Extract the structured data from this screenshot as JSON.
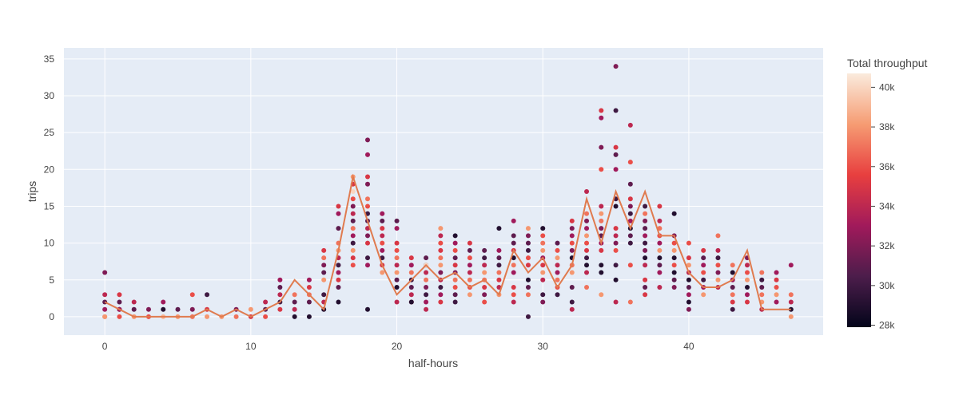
{
  "chart_data": {
    "type": "scatter",
    "xlabel": "half-hours",
    "ylabel": "trips",
    "xlim": [
      -2.8,
      49.2
    ],
    "ylim": [
      -2.5,
      36.5
    ],
    "x_ticks": [
      0,
      10,
      20,
      30,
      40
    ],
    "y_ticks": [
      0,
      5,
      10,
      15,
      20,
      25,
      30,
      35
    ],
    "plot_background": "#e5ecf6",
    "grid": true,
    "colorbar": {
      "title": "Total throughput",
      "range": [
        27900,
        40700
      ],
      "tick_values": [
        28000,
        30000,
        32000,
        34000,
        36000,
        38000,
        40000
      ],
      "tick_labels": [
        "28k",
        "30k",
        "32k",
        "34k",
        "36k",
        "38k",
        "40k"
      ],
      "colorscale": [
        "#03051a",
        "#4c1d4b",
        "#a11a5b",
        "#e83f3f",
        "#f69c73",
        "#faebdd"
      ]
    },
    "line_series": {
      "color": "#e07b4f",
      "x": [
        0,
        1,
        2,
        3,
        4,
        5,
        6,
        7,
        8,
        9,
        10,
        11,
        12,
        13,
        14,
        15,
        16,
        17,
        18,
        19,
        20,
        21,
        22,
        23,
        24,
        25,
        26,
        27,
        28,
        29,
        30,
        31,
        32,
        33,
        34,
        35,
        36,
        37,
        38,
        39,
        40,
        41,
        42,
        43,
        44,
        45,
        46,
        47
      ],
      "y": [
        2,
        1,
        0,
        0,
        0,
        0,
        0,
        1,
        0,
        1,
        0,
        1,
        2,
        5,
        3,
        1,
        9,
        19,
        13,
        7,
        3,
        5,
        7,
        5,
        6,
        4,
        5,
        3,
        9,
        6,
        8,
        4,
        7,
        16,
        10,
        17,
        12,
        17,
        11,
        11,
        6,
        4,
        4,
        5,
        9,
        1,
        1,
        1
      ]
    },
    "points": {
      "x": [
        0,
        0,
        0,
        0,
        0,
        0,
        1,
        1,
        1,
        1,
        1,
        2,
        2,
        2,
        3,
        3,
        4,
        4,
        4,
        5,
        5,
        6,
        6,
        6,
        7,
        7,
        7,
        8,
        9,
        9,
        10,
        10,
        11,
        11,
        11,
        12,
        12,
        12,
        12,
        12,
        13,
        13,
        13,
        13,
        14,
        14,
        14,
        14,
        14,
        15,
        15,
        15,
        15,
        15,
        15,
        15,
        15,
        16,
        16,
        16,
        16,
        16,
        16,
        16,
        16,
        16,
        16,
        16,
        17,
        17,
        17,
        17,
        17,
        17,
        17,
        17,
        17,
        17,
        17,
        17,
        17,
        18,
        18,
        18,
        18,
        18,
        18,
        18,
        18,
        18,
        18,
        18,
        18,
        18,
        18,
        19,
        19,
        19,
        19,
        19,
        19,
        19,
        19,
        19,
        20,
        20,
        20,
        20,
        20,
        20,
        20,
        20,
        20,
        20,
        21,
        21,
        21,
        21,
        21,
        21,
        21,
        21,
        22,
        22,
        22,
        22,
        22,
        22,
        22,
        22,
        22,
        23,
        23,
        23,
        23,
        23,
        23,
        23,
        23,
        23,
        23,
        23,
        24,
        24,
        24,
        24,
        24,
        24,
        24,
        24,
        24,
        24,
        25,
        25,
        25,
        25,
        25,
        25,
        25,
        25,
        26,
        26,
        26,
        26,
        26,
        26,
        26,
        26,
        27,
        27,
        27,
        27,
        27,
        27,
        27,
        27,
        28,
        28,
        28,
        28,
        28,
        28,
        28,
        28,
        28,
        28,
        29,
        29,
        29,
        29,
        29,
        29,
        29,
        29,
        29,
        29,
        30,
        30,
        30,
        30,
        30,
        30,
        30,
        30,
        30,
        30,
        31,
        31,
        31,
        31,
        31,
        31,
        31,
        31,
        32,
        32,
        32,
        32,
        32,
        32,
        32,
        32,
        32,
        32,
        32,
        33,
        33,
        33,
        33,
        33,
        33,
        33,
        33,
        33,
        33,
        33,
        34,
        34,
        34,
        34,
        34,
        34,
        34,
        34,
        34,
        34,
        34,
        34,
        34,
        34,
        35,
        35,
        35,
        35,
        35,
        35,
        35,
        35,
        35,
        35,
        35,
        35,
        35,
        35,
        36,
        36,
        36,
        36,
        36,
        36,
        36,
        36,
        36,
        36,
        36,
        36,
        37,
        37,
        37,
        37,
        37,
        37,
        37,
        37,
        37,
        37,
        37,
        37,
        38,
        38,
        38,
        38,
        38,
        38,
        38,
        38,
        38,
        38,
        39,
        39,
        39,
        39,
        39,
        39,
        39,
        39,
        39,
        40,
        40,
        40,
        40,
        40,
        40,
        40,
        40,
        40,
        41,
        41,
        41,
        41,
        41,
        41,
        41,
        42,
        42,
        42,
        42,
        42,
        42,
        42,
        43,
        43,
        43,
        43,
        43,
        43,
        43,
        44,
        44,
        44,
        44,
        44,
        44,
        44,
        45,
        45,
        45,
        45,
        45,
        45,
        46,
        46,
        46,
        46,
        46,
        47,
        47,
        47,
        47,
        47
      ],
      "y": [
        6,
        3,
        2,
        1,
        0,
        0,
        3,
        2,
        1,
        1,
        0,
        2,
        1,
        0,
        1,
        0,
        2,
        1,
        0,
        1,
        0,
        3,
        1,
        0,
        3,
        1,
        0,
        0,
        1,
        0,
        1,
        0,
        2,
        1,
        0,
        5,
        4,
        3,
        2,
        1,
        3,
        2,
        1,
        0,
        5,
        4,
        3,
        2,
        0,
        9,
        8,
        7,
        6,
        5,
        3,
        2,
        1,
        15,
        14,
        12,
        10,
        9,
        8,
        7,
        6,
        5,
        4,
        2,
        19,
        18,
        17,
        16,
        15,
        14,
        13,
        12,
        11,
        10,
        9,
        8,
        7,
        24,
        22,
        19,
        18,
        16,
        15,
        14,
        13,
        12,
        11,
        10,
        8,
        7,
        1,
        14,
        13,
        12,
        11,
        10,
        9,
        8,
        7,
        6,
        13,
        12,
        10,
        9,
        8,
        7,
        6,
        5,
        4,
        2,
        8,
        7,
        6,
        5,
        4,
        3,
        2,
        2,
        7,
        6,
        5,
        4,
        3,
        2,
        1,
        8,
        7,
        12,
        11,
        10,
        9,
        8,
        7,
        6,
        5,
        4,
        3,
        2,
        11,
        10,
        9,
        8,
        7,
        6,
        5,
        4,
        3,
        2,
        10,
        9,
        8,
        7,
        6,
        5,
        4,
        3,
        9,
        8,
        7,
        6,
        5,
        4,
        3,
        2,
        12,
        9,
        8,
        7,
        6,
        5,
        4,
        3,
        13,
        11,
        10,
        9,
        8,
        7,
        6,
        4,
        3,
        2,
        12,
        11,
        10,
        9,
        8,
        7,
        5,
        4,
        3,
        0,
        12,
        11,
        10,
        9,
        8,
        7,
        6,
        5,
        3,
        2,
        10,
        9,
        8,
        7,
        6,
        5,
        4,
        3,
        13,
        12,
        11,
        10,
        9,
        8,
        7,
        6,
        4,
        2,
        1,
        17,
        14,
        13,
        12,
        11,
        10,
        9,
        8,
        7,
        6,
        4,
        28,
        27,
        23,
        20,
        15,
        14,
        13,
        12,
        11,
        10,
        9,
        7,
        6,
        3,
        34,
        28,
        23,
        22,
        20,
        16,
        15,
        12,
        11,
        10,
        9,
        7,
        5,
        2,
        26,
        21,
        18,
        16,
        15,
        14,
        13,
        12,
        11,
        10,
        7,
        2,
        15,
        14,
        13,
        12,
        11,
        10,
        9,
        8,
        7,
        5,
        4,
        3,
        15,
        13,
        12,
        11,
        10,
        9,
        8,
        7,
        6,
        4,
        14,
        11,
        10,
        9,
        8,
        7,
        6,
        5,
        4,
        10,
        8,
        7,
        6,
        5,
        4,
        3,
        2,
        1,
        9,
        8,
        7,
        6,
        5,
        4,
        3,
        11,
        9,
        8,
        7,
        6,
        5,
        4,
        7,
        6,
        5,
        4,
        3,
        2,
        1,
        8,
        7,
        6,
        5,
        4,
        3,
        2,
        6,
        5,
        4,
        3,
        2,
        1,
        6,
        5,
        4,
        3,
        2,
        7,
        3,
        2,
        1,
        0
      ],
      "throughput": [
        32000,
        34000,
        31000,
        33000,
        37000,
        38000,
        35000,
        31000,
        29000,
        33000,
        36000,
        34000,
        31000,
        38000,
        32000,
        36000,
        33000,
        29000,
        39000,
        31000,
        38000,
        36000,
        32000,
        37000,
        30000,
        35000,
        38000,
        38000,
        32000,
        37000,
        38000,
        35000,
        34000,
        31000,
        36000,
        33000,
        31000,
        34000,
        30000,
        35000,
        37000,
        31000,
        34000,
        29000,
        33000,
        35000,
        37000,
        31000,
        29000,
        35000,
        37000,
        32000,
        31000,
        38000,
        30000,
        34000,
        29000,
        35000,
        33000,
        31000,
        37000,
        38000,
        34000,
        30000,
        33000,
        35000,
        31000,
        29000,
        38000,
        35000,
        40000,
        36000,
        32000,
        34000,
        31000,
        37000,
        33000,
        30000,
        38000,
        35000,
        36000,
        32000,
        33000,
        35000,
        32000,
        37000,
        36000,
        30000,
        31000,
        34000,
        32000,
        35000,
        30000,
        33000,
        29000,
        33000,
        31000,
        35000,
        34000,
        36000,
        33000,
        30000,
        35000,
        38000,
        31000,
        33000,
        35000,
        36000,
        37000,
        34000,
        38000,
        31000,
        29000,
        34000,
        35000,
        33000,
        37000,
        30000,
        31000,
        34000,
        35000,
        29000,
        29000,
        34000,
        37000,
        32000,
        30000,
        33000,
        34000,
        31000,
        40000,
        38000,
        34000,
        36000,
        35000,
        37000,
        38000,
        32000,
        34000,
        30000,
        33000,
        35000,
        29000,
        33000,
        36000,
        31000,
        35000,
        32000,
        37000,
        36000,
        31000,
        30000,
        35000,
        31000,
        36000,
        33000,
        34000,
        37000,
        36000,
        38000,
        31000,
        30000,
        34000,
        38000,
        37000,
        35000,
        32000,
        36000,
        29000,
        33000,
        31000,
        30000,
        37000,
        35000,
        34000,
        38000,
        33000,
        31000,
        31000,
        35000,
        29000,
        37000,
        33000,
        35000,
        36000,
        34000,
        38000,
        32000,
        31000,
        30000,
        36000,
        35000,
        29000,
        31000,
        37000,
        30000,
        29000,
        36000,
        37000,
        38000,
        33000,
        35000,
        38000,
        34000,
        30000,
        32000,
        31000,
        36000,
        38000,
        34000,
        33000,
        37000,
        36000,
        30000,
        35000,
        32000,
        33000,
        36000,
        32000,
        29000,
        37000,
        38000,
        31000,
        30000,
        34000,
        34000,
        37000,
        32000,
        33000,
        38000,
        36000,
        35000,
        30000,
        29000,
        34000,
        37000,
        35000,
        33000,
        32000,
        36000,
        34000,
        38000,
        37000,
        32000,
        31000,
        33000,
        35000,
        29000,
        29000,
        38000,
        32000,
        30000,
        35000,
        31000,
        33000,
        30000,
        29000,
        35000,
        34000,
        32000,
        36000,
        30000,
        29000,
        34000,
        34000,
        36000,
        31000,
        35000,
        32000,
        30000,
        33000,
        29000,
        31000,
        30000,
        36000,
        37000,
        30000,
        37000,
        32000,
        31000,
        33000,
        30000,
        32000,
        29000,
        34000,
        35000,
        31000,
        35000,
        35000,
        34000,
        37000,
        36000,
        33000,
        38000,
        29000,
        31000,
        33000,
        34000,
        29000,
        32000,
        36000,
        38000,
        29000,
        36000,
        29000,
        31000,
        32000,
        36000,
        35000,
        38000,
        34000,
        29000,
        31000,
        33000,
        29000,
        32000,
        35000,
        31000,
        33000,
        36000,
        30000,
        33000,
        38000,
        37000,
        34000,
        30000,
        36000,
        32000,
        38000,
        34000,
        37000,
        29000,
        33000,
        31000,
        37000,
        35000,
        30000,
        32000,
        34000,
        36000,
        38000,
        29000,
        33000,
        35000,
        37000,
        30000,
        31000,
        37000,
        38000,
        34000,
        33000,
        35000,
        36000,
        38000,
        33000,
        33000,
        37000,
        34000,
        29000,
        38000
      ]
    }
  }
}
